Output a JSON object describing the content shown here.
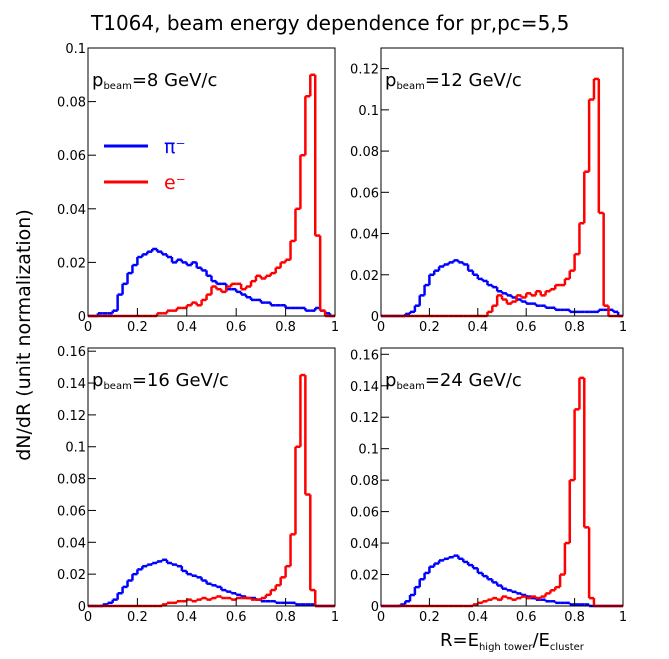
{
  "page": {
    "title": "T1064, beam energy dependence for pr,pc=5,5",
    "ylabel": "dN/dR (unit normalization)",
    "xlabel_parts": [
      "R=E",
      "high tower",
      "/E",
      "cluster"
    ]
  },
  "chart_data": [
    {
      "type": "histogram",
      "annotation": [
        "p",
        "beam",
        "=8 GeV/c"
      ],
      "legend": true,
      "bins": [
        0,
        0.02,
        0.04,
        0.06,
        0.08,
        0.1,
        0.12,
        0.14,
        0.16,
        0.18,
        0.2,
        0.22,
        0.24,
        0.26,
        0.28,
        0.3,
        0.32,
        0.34,
        0.36,
        0.38,
        0.4,
        0.42,
        0.44,
        0.46,
        0.48,
        0.5,
        0.52,
        0.54,
        0.56,
        0.58,
        0.6,
        0.62,
        0.64,
        0.66,
        0.68,
        0.7,
        0.72,
        0.74,
        0.76,
        0.78,
        0.8,
        0.82,
        0.84,
        0.86,
        0.88,
        0.9,
        0.92,
        0.94,
        0.96,
        0.98,
        1
      ],
      "xlim": [
        0,
        1
      ],
      "xticks": [
        0,
        0.2,
        0.4,
        0.6,
        0.8,
        1
      ],
      "ylim": [
        0,
        0.1
      ],
      "yticks": [
        0,
        0.02,
        0.04,
        0.06,
        0.08,
        0.1
      ],
      "series": [
        {
          "name": "π⁻",
          "color": "#0000ff",
          "values": [
            0,
            0,
            0.001,
            0.001,
            0.001,
            0.002,
            0.008,
            0.012,
            0.016,
            0.019,
            0.022,
            0.023,
            0.024,
            0.025,
            0.024,
            0.023,
            0.022,
            0.02,
            0.021,
            0.02,
            0.019,
            0.02,
            0.018,
            0.017,
            0.015,
            0.013,
            0.012,
            0.012,
            0.01,
            0.01,
            0.009,
            0.008,
            0.007,
            0.006,
            0.006,
            0.005,
            0.005,
            0.004,
            0.004,
            0.004,
            0.003,
            0.003,
            0.003,
            0.003,
            0.002,
            0.002,
            0.003,
            0.002,
            0.001,
            0
          ]
        },
        {
          "name": "e⁻",
          "color": "#ff0000",
          "values": [
            0,
            0,
            0,
            0,
            0,
            0,
            0,
            0,
            0,
            0,
            0,
            0,
            0,
            0,
            0.001,
            0.001,
            0.002,
            0.002,
            0.003,
            0.003,
            0.004,
            0.005,
            0.004,
            0.006,
            0.008,
            0.011,
            0.01,
            0.009,
            0.011,
            0.012,
            0.012,
            0.01,
            0.011,
            0.013,
            0.015,
            0.014,
            0.015,
            0.016,
            0.018,
            0.02,
            0.021,
            0.028,
            0.04,
            0.06,
            0.082,
            0.09,
            0.03,
            0.002,
            0,
            0
          ]
        }
      ]
    },
    {
      "type": "histogram",
      "annotation": [
        "p",
        "beam",
        "=12 GeV/c"
      ],
      "legend": false,
      "bins": [
        0,
        0.02,
        0.04,
        0.06,
        0.08,
        0.1,
        0.12,
        0.14,
        0.16,
        0.18,
        0.2,
        0.22,
        0.24,
        0.26,
        0.28,
        0.3,
        0.32,
        0.34,
        0.36,
        0.38,
        0.4,
        0.42,
        0.44,
        0.46,
        0.48,
        0.5,
        0.52,
        0.54,
        0.56,
        0.58,
        0.6,
        0.62,
        0.64,
        0.66,
        0.68,
        0.7,
        0.72,
        0.74,
        0.76,
        0.78,
        0.8,
        0.82,
        0.84,
        0.86,
        0.88,
        0.9,
        0.92,
        0.94,
        0.96,
        0.98,
        1
      ],
      "xlim": [
        0,
        1
      ],
      "xticks": [
        0,
        0.2,
        0.4,
        0.6,
        0.8,
        1
      ],
      "ylim": [
        0,
        0.13
      ],
      "yticks": [
        0,
        0.02,
        0.04,
        0.06,
        0.08,
        0.1,
        0.12
      ],
      "series": [
        {
          "name": "π⁻",
          "color": "#0000ff",
          "values": [
            0,
            0,
            0,
            0,
            0,
            0.001,
            0.002,
            0.005,
            0.01,
            0.015,
            0.02,
            0.022,
            0.024,
            0.025,
            0.026,
            0.027,
            0.026,
            0.025,
            0.022,
            0.02,
            0.018,
            0.017,
            0.015,
            0.014,
            0.012,
            0.011,
            0.01,
            0.009,
            0.008,
            0.007,
            0.006,
            0.006,
            0.005,
            0.005,
            0.004,
            0.004,
            0.003,
            0.003,
            0.003,
            0.002,
            0.002,
            0.002,
            0.002,
            0.002,
            0.002,
            0.003,
            0.003,
            0.003,
            0.002,
            0
          ]
        },
        {
          "name": "e⁻",
          "color": "#ff0000",
          "values": [
            0,
            0,
            0,
            0,
            0,
            0,
            0,
            0,
            0,
            0,
            0,
            0,
            0,
            0,
            0,
            0,
            0,
            0,
            0,
            0,
            0,
            0,
            0.002,
            0.005,
            0.01,
            0.008,
            0.006,
            0.007,
            0.01,
            0.009,
            0.011,
            0.01,
            0.012,
            0.01,
            0.012,
            0.013,
            0.015,
            0.015,
            0.018,
            0.022,
            0.03,
            0.045,
            0.07,
            0.105,
            0.115,
            0.05,
            0.005,
            0,
            0,
            0
          ]
        }
      ]
    },
    {
      "type": "histogram",
      "annotation": [
        "p",
        "beam",
        "=16 GeV/c"
      ],
      "legend": false,
      "bins": [
        0,
        0.02,
        0.04,
        0.06,
        0.08,
        0.1,
        0.12,
        0.14,
        0.16,
        0.18,
        0.2,
        0.22,
        0.24,
        0.26,
        0.28,
        0.3,
        0.32,
        0.34,
        0.36,
        0.38,
        0.4,
        0.42,
        0.44,
        0.46,
        0.48,
        0.5,
        0.52,
        0.54,
        0.56,
        0.58,
        0.6,
        0.62,
        0.64,
        0.66,
        0.68,
        0.7,
        0.72,
        0.74,
        0.76,
        0.78,
        0.8,
        0.82,
        0.84,
        0.86,
        0.88,
        0.9,
        0.92,
        0.94,
        0.96,
        0.98,
        1
      ],
      "xlim": [
        0,
        1
      ],
      "xticks": [
        0,
        0.2,
        0.4,
        0.6,
        0.8,
        1
      ],
      "ylim": [
        0,
        0.162
      ],
      "yticks": [
        0,
        0.02,
        0.04,
        0.06,
        0.08,
        0.1,
        0.12,
        0.14,
        0.16
      ],
      "series": [
        {
          "name": "π⁻",
          "color": "#0000ff",
          "values": [
            0,
            0,
            0,
            0.001,
            0.002,
            0.004,
            0.008,
            0.012,
            0.016,
            0.02,
            0.023,
            0.025,
            0.026,
            0.027,
            0.028,
            0.029,
            0.027,
            0.026,
            0.025,
            0.022,
            0.02,
            0.019,
            0.018,
            0.016,
            0.014,
            0.013,
            0.012,
            0.01,
            0.009,
            0.008,
            0.007,
            0.006,
            0.005,
            0.005,
            0.004,
            0.003,
            0.003,
            0.003,
            0.002,
            0.002,
            0.002,
            0.002,
            0.001,
            0.001,
            0.001,
            0.001,
            0,
            0,
            0,
            0
          ]
        },
        {
          "name": "e⁻",
          "color": "#ff0000",
          "values": [
            0,
            0,
            0,
            0,
            0,
            0,
            0,
            0,
            0,
            0,
            0,
            0,
            0,
            0,
            0,
            0.001,
            0.002,
            0.002,
            0.003,
            0.003,
            0.004,
            0.003,
            0.004,
            0.005,
            0.004,
            0.005,
            0.006,
            0.005,
            0.005,
            0.004,
            0.005,
            0.005,
            0.005,
            0.004,
            0.004,
            0.005,
            0.007,
            0.01,
            0.013,
            0.018,
            0.025,
            0.045,
            0.1,
            0.145,
            0.07,
            0.01,
            0,
            0,
            0,
            0
          ]
        }
      ]
    },
    {
      "type": "histogram",
      "annotation": [
        "p",
        "beam",
        "=24 GeV/c"
      ],
      "legend": false,
      "bins": [
        0,
        0.02,
        0.04,
        0.06,
        0.08,
        0.1,
        0.12,
        0.14,
        0.16,
        0.18,
        0.2,
        0.22,
        0.24,
        0.26,
        0.28,
        0.3,
        0.32,
        0.34,
        0.36,
        0.38,
        0.4,
        0.42,
        0.44,
        0.46,
        0.48,
        0.5,
        0.52,
        0.54,
        0.56,
        0.58,
        0.6,
        0.62,
        0.64,
        0.66,
        0.68,
        0.7,
        0.72,
        0.74,
        0.76,
        0.78,
        0.8,
        0.82,
        0.84,
        0.86,
        0.88,
        0.9,
        0.92,
        0.94,
        0.96,
        0.98,
        1
      ],
      "xlim": [
        0,
        1
      ],
      "xticks": [
        0,
        0.2,
        0.4,
        0.6,
        0.8,
        1
      ],
      "ylim": [
        0,
        0.164
      ],
      "yticks": [
        0,
        0.02,
        0.04,
        0.06,
        0.08,
        0.1,
        0.12,
        0.14,
        0.16
      ],
      "series": [
        {
          "name": "π⁻",
          "color": "#0000ff",
          "values": [
            0,
            0,
            0,
            0,
            0.001,
            0.003,
            0.007,
            0.012,
            0.017,
            0.021,
            0.025,
            0.027,
            0.029,
            0.03,
            0.031,
            0.032,
            0.03,
            0.028,
            0.026,
            0.024,
            0.021,
            0.019,
            0.017,
            0.015,
            0.013,
            0.011,
            0.01,
            0.009,
            0.008,
            0.007,
            0.006,
            0.005,
            0.004,
            0.004,
            0.003,
            0.003,
            0.002,
            0.002,
            0.002,
            0.001,
            0.001,
            0.001,
            0.001,
            0,
            0,
            0,
            0,
            0,
            0,
            0
          ]
        },
        {
          "name": "e⁻",
          "color": "#ff0000",
          "values": [
            0,
            0,
            0,
            0,
            0,
            0,
            0,
            0,
            0,
            0,
            0,
            0,
            0,
            0,
            0,
            0,
            0,
            0,
            0,
            0.001,
            0.002,
            0.003,
            0.004,
            0.005,
            0.004,
            0.006,
            0.005,
            0.004,
            0.005,
            0.006,
            0.005,
            0.006,
            0.005,
            0.006,
            0.008,
            0.01,
            0.012,
            0.02,
            0.04,
            0.08,
            0.125,
            0.145,
            0.05,
            0.005,
            0,
            0,
            0,
            0,
            0,
            0
          ]
        }
      ]
    }
  ]
}
